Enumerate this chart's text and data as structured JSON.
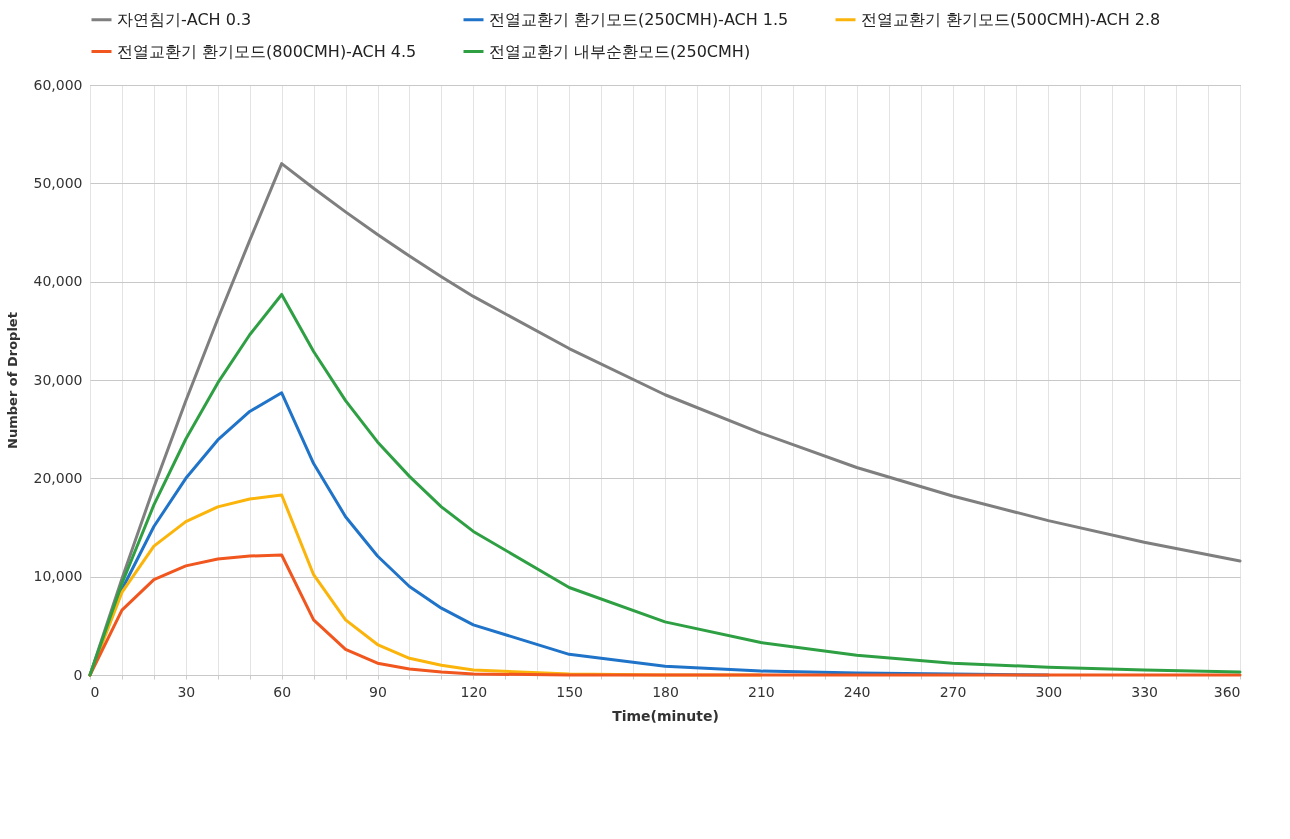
{
  "chart_data": {
    "type": "line",
    "xlabel": "Time(minute)",
    "ylabel": "Number of Droplet",
    "legend": "top left",
    "grid": true,
    "line_style": "solid",
    "marker": "none",
    "x": [
      0,
      10,
      20,
      30,
      40,
      50,
      60,
      70,
      80,
      90,
      100,
      110,
      120,
      150,
      180,
      210,
      240,
      270,
      300,
      330,
      360
    ],
    "xlim": [
      0,
      360
    ],
    "ylim": [
      0,
      60000
    ],
    "xticks": [
      0,
      {
        "value": 10,
        "label": null
      },
      {
        "value": 20,
        "label": null
      },
      30,
      {
        "value": 40,
        "label": null
      },
      {
        "value": 50,
        "label": null
      },
      60,
      {
        "value": 70,
        "label": null
      },
      {
        "value": 80,
        "label": null
      },
      90,
      {
        "value": 100,
        "label": null
      },
      {
        "value": 110,
        "label": null
      },
      120,
      {
        "value": 130,
        "label": null
      },
      {
        "value": 140,
        "label": null
      },
      150,
      {
        "value": 160,
        "label": null
      },
      {
        "value": 170,
        "label": null
      },
      180,
      {
        "value": 190,
        "label": null
      },
      {
        "value": 200,
        "label": null
      },
      210,
      {
        "value": 220,
        "label": null
      },
      {
        "value": 230,
        "label": null
      },
      240,
      {
        "value": 250,
        "label": null
      },
      {
        "value": 260,
        "label": null
      },
      270,
      {
        "value": 280,
        "label": null
      },
      {
        "value": 290,
        "label": null
      },
      300,
      {
        "value": 310,
        "label": null
      },
      {
        "value": 320,
        "label": null
      },
      330,
      {
        "value": 340,
        "label": null
      },
      {
        "value": 350,
        "label": null
      },
      360
    ],
    "yticks": [
      {
        "value": 0,
        "label": "0"
      },
      {
        "value": 10000,
        "label": "10,000"
      },
      {
        "value": 20000,
        "label": "20,000"
      },
      {
        "value": 30000,
        "label": "30,000"
      },
      {
        "value": 40000,
        "label": "40,000"
      },
      {
        "value": 50000,
        "label": "50,000"
      },
      {
        "value": 60000,
        "label": "60,000"
      }
    ],
    "series": [
      {
        "name": "자연침기-ACH 0.3",
        "color": "#7f7f7f",
        "values": [
          0,
          9800,
          19100,
          27900,
          36200,
          44200,
          52000,
          49500,
          47100,
          44800,
          42600,
          40500,
          38500,
          33200,
          28500,
          24600,
          21100,
          18200,
          15700,
          13500,
          11600
        ]
      },
      {
        "name": "전열교환기 환기모드(250CMH)-ACH 1.5",
        "color": "#1f73c8",
        "values": [
          0,
          8700,
          15100,
          20000,
          23900,
          26800,
          28700,
          21500,
          16100,
          12100,
          9000,
          6800,
          5100,
          2100,
          900,
          400,
          200,
          100,
          0,
          null,
          null
        ]
      },
      {
        "name": "전열교환기 환기모드(500CMH)-ACH 2.8",
        "color": "#fbb40a",
        "values": [
          0,
          8400,
          13100,
          15600,
          17100,
          17900,
          18300,
          10200,
          5600,
          3100,
          1700,
          1000,
          500,
          100,
          0,
          0,
          null,
          null,
          null,
          null,
          null
        ]
      },
      {
        "name": "전열교환기 환기모드(800CMH)-ACH 4.5",
        "color": "#f0561e",
        "values": [
          0,
          6600,
          9700,
          11100,
          11800,
          12100,
          12200,
          5600,
          2600,
          1200,
          600,
          300,
          100,
          0,
          0,
          0,
          0,
          0,
          0,
          0,
          0
        ]
      },
      {
        "name": "전열교환기 내부순환모드(250CMH)",
        "color": "#2ea043",
        "values": [
          0,
          9300,
          17300,
          24000,
          29700,
          34600,
          38700,
          32900,
          27900,
          23700,
          20200,
          17100,
          14600,
          8900,
          5400,
          3300,
          2000,
          1200,
          800,
          500,
          300
        ]
      }
    ]
  }
}
